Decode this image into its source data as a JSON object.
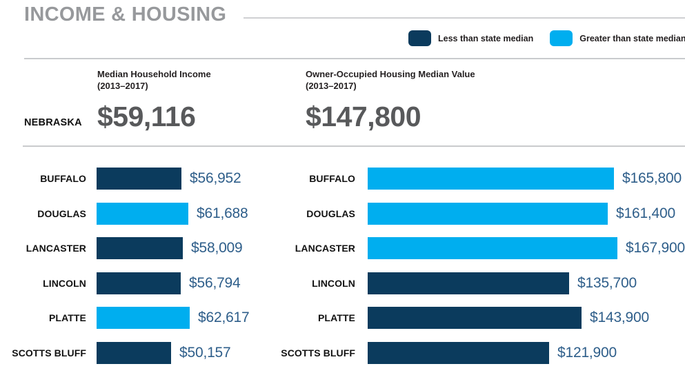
{
  "header": {
    "title": "INCOME & HOUSING"
  },
  "legend": {
    "items": [
      {
        "label": "Less than state median",
        "color": "#0B3B5D"
      },
      {
        "label": "Greater than state median",
        "color": "#00AEEF"
      }
    ]
  },
  "state": {
    "name": "NEBRASKA",
    "stats": [
      {
        "heading": "Median Household Income",
        "period": "(2013–2017)",
        "value": "$59,116"
      },
      {
        "heading": "Owner-Occupied Housing Median Value",
        "period": "(2013–2017)",
        "value": "$147,800"
      }
    ]
  },
  "colors": {
    "less_than_median": "#0B3B5D",
    "greater_than_median": "#00AEEF",
    "value_text": "#2E5E8A",
    "title_gray": "#97999C"
  },
  "chart_data": [
    {
      "type": "bar",
      "orientation": "horizontal",
      "title": "Median Household Income (2013–2017)",
      "categories": [
        "BUFFALO",
        "DOUGLAS",
        "LANCASTER",
        "LINCOLN",
        "PLATTE",
        "SCOTTS BLUFF"
      ],
      "values": [
        56952,
        61688,
        58009,
        56794,
        62617,
        50157
      ],
      "value_labels": [
        "$56,952",
        "$61,688",
        "$58,009",
        "$56,794",
        "$62,617",
        "$50,157"
      ],
      "state_median": 59116,
      "legend_rule": "bars greater than state median are light blue, others dark navy",
      "grid": false,
      "legend_position": "top-right"
    },
    {
      "type": "bar",
      "orientation": "horizontal",
      "title": "Owner-Occupied Housing Median Value (2013–2017)",
      "categories": [
        "BUFFALO",
        "DOUGLAS",
        "LANCASTER",
        "LINCOLN",
        "PLATTE",
        "SCOTTS BLUFF"
      ],
      "values": [
        165800,
        161400,
        167900,
        135700,
        143900,
        121900
      ],
      "value_labels": [
        "$165,800",
        "$161,400",
        "$167,900",
        "$135,700",
        "$143,900",
        "$121,900"
      ],
      "state_median": 147800,
      "legend_rule": "bars greater than state median are light blue, others dark navy",
      "grid": false,
      "legend_position": "top-right"
    }
  ]
}
